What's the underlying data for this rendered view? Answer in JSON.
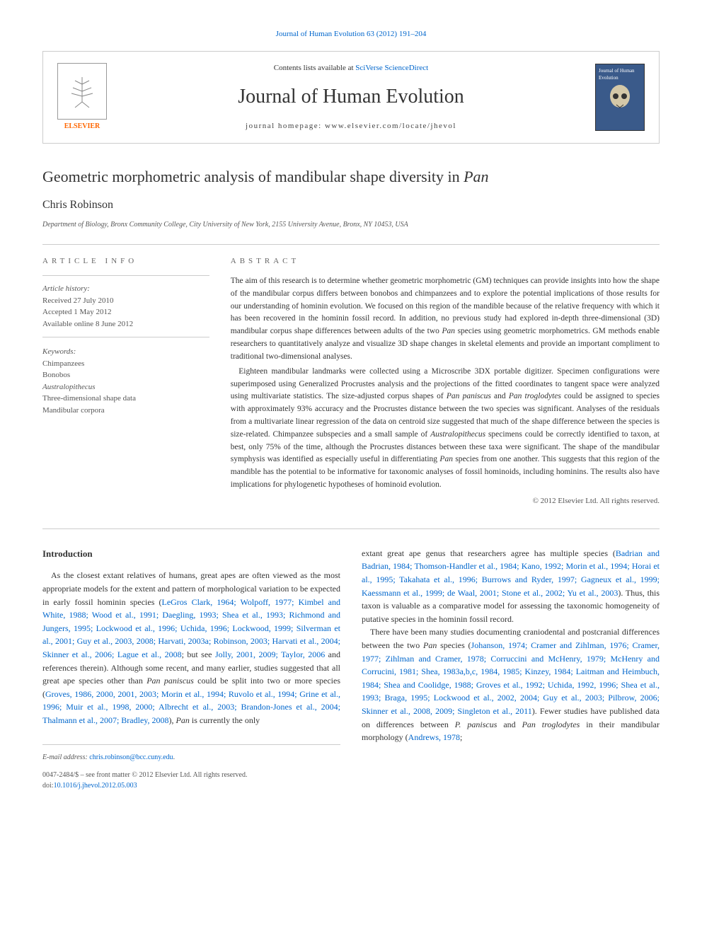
{
  "journal_ref": "Journal of Human Evolution 63 (2012) 191–204",
  "header": {
    "contents_prefix": "Contents lists available at ",
    "contents_link": "SciVerse ScienceDirect",
    "journal_name": "Journal of Human Evolution",
    "homepage_prefix": "journal homepage: ",
    "homepage_url": "www.elsevier.com/locate/jhevol",
    "elsevier_label": "ELSEVIER",
    "cover_label": "Journal of Human Evolution"
  },
  "article": {
    "title_main": "Geometric morphometric analysis of mandibular shape diversity in ",
    "title_italic": "Pan",
    "author": "Chris Robinson",
    "affiliation": "Department of Biology, Bronx Community College, City University of New York, 2155 University Avenue, Bronx, NY 10453, USA"
  },
  "info": {
    "heading": "article info",
    "history_label": "Article history:",
    "received": "Received 27 July 2010",
    "accepted": "Accepted 1 May 2012",
    "online": "Available online 8 June 2012",
    "keywords_label": "Keywords:",
    "keywords": [
      {
        "text": "Chimpanzees",
        "italic": false
      },
      {
        "text": "Bonobos",
        "italic": false
      },
      {
        "text": "Australopithecus",
        "italic": true
      },
      {
        "text": "Three-dimensional shape data",
        "italic": false
      },
      {
        "text": "Mandibular corpora",
        "italic": false
      }
    ]
  },
  "abstract": {
    "heading": "abstract",
    "para1_a": "The aim of this research is to determine whether geometric morphometric (GM) techniques can provide insights into how the shape of the mandibular corpus differs between bonobos and chimpanzees and to explore the potential implications of those results for our understanding of hominin evolution. We focused on this region of the mandible because of the relative frequency with which it has been recovered in the hominin fossil record. In addition, no previous study had explored in-depth three-dimensional (3D) mandibular corpus shape differences between adults of the two ",
    "para1_b": "Pan",
    "para1_c": " species using geometric morphometrics. GM methods enable researchers to quantitatively analyze and visualize 3D shape changes in skeletal elements and provide an important compliment to traditional two-dimensional analyses.",
    "para2_a": "Eighteen mandibular landmarks were collected using a Microscribe 3DX portable digitizer. Specimen configurations were superimposed using Generalized Procrustes analysis and the projections of the fitted coordinates to tangent space were analyzed using multivariate statistics. The size-adjusted corpus shapes of ",
    "para2_b": "Pan paniscus",
    "para2_c": " and ",
    "para2_d": "Pan troglodytes",
    "para2_e": " could be assigned to species with approximately 93% accuracy and the Procrustes distance between the two species was significant. Analyses of the residuals from a multivariate linear regression of the data on centroid size suggested that much of the shape difference between the species is size-related. Chimpanzee subspecies and a small sample of ",
    "para2_f": "Australopithecus",
    "para2_g": " specimens could be correctly identified to taxon, at best, only 75% of the time, although the Procrustes distances between these taxa were significant. The shape of the mandibular symphysis was identified as especially useful in differentiating ",
    "para2_h": "Pan",
    "para2_i": " species from one another. This suggests that this region of the mandible has the potential to be informative for taxonomic analyses of fossil hominoids, including hominins. The results also have implications for phylogenetic hypotheses of hominoid evolution.",
    "copyright": "© 2012 Elsevier Ltd. All rights reserved."
  },
  "body": {
    "intro_heading": "Introduction",
    "left_para_a": "As the closest extant relatives of humans, great apes are often viewed as the most appropriate models for the extent and pattern of morphological variation to be expected in early fossil hominin species (",
    "left_refs1": "LeGros Clark, 1964; Wolpoff, 1977; Kimbel and White, 1988; Wood et al., 1991; Daegling, 1993; Shea et al., 1993; Richmond and Jungers, 1995; Lockwood et al., 1996; Uchida, 1996; Lockwood, 1999; Silverman et al., 2001; Guy et al., 2003, 2008; Harvati, 2003a; Robinson, 2003; Harvati et al., 2004; Skinner et al., 2006; Lague et al., 2008",
    "left_para_b": "; but see ",
    "left_refs2": "Jolly, 2001, 2009; Taylor, 2006",
    "left_para_c": " and references therein). Although some recent, and many earlier, studies suggested that all great ape species other than ",
    "left_italic1": "Pan paniscus",
    "left_para_d": " could be split into two or more species (",
    "left_refs3": "Groves, 1986, 2000, 2001, 2003; Morin et al., 1994; Ruvolo et al., 1994; Grine et al., 1996; Muir et al., 1998, 2000; Albrecht et al., 2003; Brandon-Jones et al., 2004; Thalmann et al., 2007; Bradley, 2008",
    "left_para_e": "), ",
    "left_italic2": "Pan",
    "left_para_f": " is currently the only ",
    "right_para_a": "extant great ape genus that researchers agree has multiple species (",
    "right_refs1": "Badrian and Badrian, 1984; Thomson-Handler et al., 1984; Kano, 1992; Morin et al., 1994; Horai et al., 1995; Takahata et al., 1996; Burrows and Ryder, 1997; Gagneux et al., 1999; Kaessmann et al., 1999; de Waal, 2001; Stone et al., 2002; Yu et al., 2003",
    "right_para_b": "). Thus, this taxon is valuable as a comparative model for assessing the taxonomic homogeneity of putative species in the hominin fossil record.",
    "right_para2_a": "There have been many studies documenting craniodental and postcranial differences between the two ",
    "right_italic1": "Pan",
    "right_para2_b": " species (",
    "right_refs2": "Johanson, 1974; Cramer and Zihlman, 1976; Cramer, 1977; Zihlman and Cramer, 1978; Corruccini and McHenry, 1979; McHenry and Corrucini, 1981; Shea, 1983a,b,c, 1984, 1985; Kinzey, 1984; Laitman and Heimbuch, 1984; Shea and Coolidge, 1988; Groves et al., 1992; Uchida, 1992, 1996; Shea et al., 1993; Braga, 1995; Lockwood et al., 2002, 2004; Guy et al., 2003; Pilbrow, 2006; Skinner et al., 2008, 2009; Singleton et al., 2011",
    "right_para2_c": "). Fewer studies have published data on differences between ",
    "right_italic2": "P. paniscus",
    "right_para2_d": " and ",
    "right_italic3": "Pan troglodytes",
    "right_para2_e": " in their mandibular morphology (",
    "right_refs3": "Andrews, 1978",
    "right_para2_f": ";"
  },
  "footer": {
    "email_label": "E-mail address:",
    "email": "chris.robinson@bcc.cuny.edu",
    "issn_line": "0047-2484/$ – see front matter © 2012 Elsevier Ltd. All rights reserved.",
    "doi_label": "doi:",
    "doi": "10.1016/j.jhevol.2012.05.003"
  },
  "colors": {
    "link": "#0066cc",
    "text": "#333333",
    "muted": "#555555",
    "border": "#cccccc",
    "elsevier_orange": "#ff6600",
    "cover_bg": "#3a5a8a"
  }
}
